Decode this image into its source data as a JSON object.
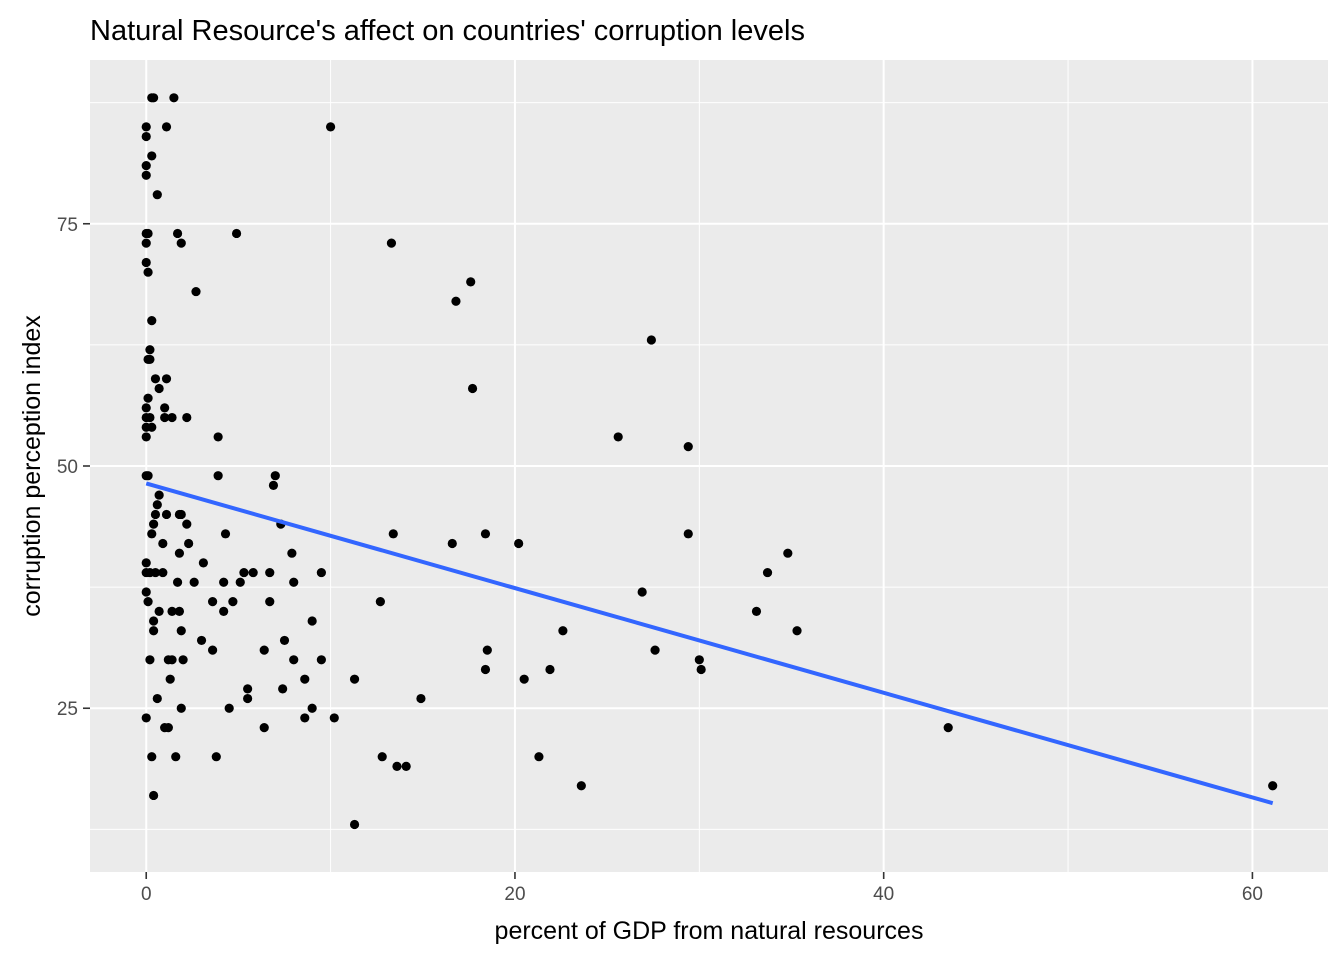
{
  "chart_data": {
    "type": "scatter",
    "title": "Natural Resource's affect on countries' corruption levels",
    "xlabel": "percent of GDP from natural resources",
    "ylabel": "corruption perception index",
    "xlim": [
      -3.05,
      64.1
    ],
    "ylim": [
      8.1,
      91.9
    ],
    "x_ticks": [
      0,
      20,
      40,
      60
    ],
    "x_tick_labels": [
      "0",
      "20",
      "40",
      "60"
    ],
    "y_ticks": [
      25,
      50,
      75
    ],
    "y_tick_labels": [
      "25",
      "50",
      "75"
    ],
    "grid": true,
    "legend": "none",
    "colors": {
      "panel_background": "#ebebeb",
      "grid": "#ffffff",
      "points": "#000000",
      "trend_line": "#3366ff"
    },
    "trend_line": {
      "x": [
        0,
        61.1
      ],
      "y": [
        48.2,
        15.2
      ]
    },
    "points": [
      [
        0.3,
        88
      ],
      [
        0.4,
        88
      ],
      [
        1.5,
        88
      ],
      [
        0,
        85
      ],
      [
        1.1,
        85
      ],
      [
        10,
        85
      ],
      [
        0,
        84
      ],
      [
        0.3,
        82
      ],
      [
        0,
        81
      ],
      [
        0,
        80
      ],
      [
        0.6,
        78
      ],
      [
        0,
        74
      ],
      [
        0.1,
        74
      ],
      [
        1.7,
        74
      ],
      [
        4.9,
        74
      ],
      [
        0,
        73
      ],
      [
        1.9,
        73
      ],
      [
        13.3,
        73
      ],
      [
        0,
        71
      ],
      [
        0.1,
        70
      ],
      [
        17.6,
        69
      ],
      [
        2.7,
        68
      ],
      [
        16.8,
        67
      ],
      [
        0.3,
        65
      ],
      [
        27.4,
        63
      ],
      [
        0.2,
        62
      ],
      [
        0.1,
        61
      ],
      [
        0.2,
        61
      ],
      [
        0.5,
        59
      ],
      [
        1.1,
        59
      ],
      [
        0.7,
        58
      ],
      [
        17.7,
        58
      ],
      [
        0.1,
        57
      ],
      [
        0,
        56
      ],
      [
        1,
        56
      ],
      [
        0,
        55
      ],
      [
        0.2,
        55
      ],
      [
        1,
        55
      ],
      [
        1.4,
        55
      ],
      [
        2.2,
        55
      ],
      [
        0,
        54
      ],
      [
        0.3,
        54
      ],
      [
        0,
        53
      ],
      [
        3.9,
        53
      ],
      [
        25.6,
        53
      ],
      [
        29.4,
        52
      ],
      [
        0,
        49
      ],
      [
        0.1,
        49
      ],
      [
        3.9,
        49
      ],
      [
        7,
        49
      ],
      [
        6.9,
        48
      ],
      [
        0.7,
        47
      ],
      [
        0.6,
        46
      ],
      [
        0.5,
        45
      ],
      [
        1.1,
        45
      ],
      [
        1.8,
        45
      ],
      [
        1.9,
        45
      ],
      [
        0.4,
        44
      ],
      [
        2.2,
        44
      ],
      [
        7.3,
        44
      ],
      [
        0.3,
        43
      ],
      [
        4.3,
        43
      ],
      [
        13.4,
        43
      ],
      [
        18.4,
        43
      ],
      [
        29.4,
        43
      ],
      [
        0.9,
        42
      ],
      [
        2.3,
        42
      ],
      [
        16.6,
        42
      ],
      [
        20.2,
        42
      ],
      [
        1.8,
        41
      ],
      [
        7.9,
        41
      ],
      [
        34.8,
        41
      ],
      [
        0,
        40
      ],
      [
        3.1,
        40
      ],
      [
        0,
        39
      ],
      [
        0.2,
        39
      ],
      [
        0.5,
        39
      ],
      [
        0.9,
        39
      ],
      [
        5.3,
        39
      ],
      [
        5.8,
        39
      ],
      [
        6.7,
        39
      ],
      [
        9.5,
        39
      ],
      [
        33.7,
        39
      ],
      [
        1.7,
        38
      ],
      [
        2.6,
        38
      ],
      [
        4.2,
        38
      ],
      [
        5.1,
        38
      ],
      [
        8,
        38
      ],
      [
        0,
        37
      ],
      [
        26.9,
        37
      ],
      [
        0.1,
        36
      ],
      [
        3.6,
        36
      ],
      [
        4.7,
        36
      ],
      [
        6.7,
        36
      ],
      [
        12.7,
        36
      ],
      [
        0.7,
        35
      ],
      [
        1.4,
        35
      ],
      [
        1.8,
        35
      ],
      [
        4.2,
        35
      ],
      [
        33.1,
        35
      ],
      [
        0.4,
        34
      ],
      [
        9,
        34
      ],
      [
        0.4,
        33
      ],
      [
        1.9,
        33
      ],
      [
        22.6,
        33
      ],
      [
        35.3,
        33
      ],
      [
        3,
        32
      ],
      [
        7.5,
        32
      ],
      [
        3.6,
        31
      ],
      [
        6.4,
        31
      ],
      [
        18.5,
        31
      ],
      [
        27.6,
        31
      ],
      [
        0.2,
        30
      ],
      [
        1.2,
        30
      ],
      [
        1.4,
        30
      ],
      [
        2,
        30
      ],
      [
        8,
        30
      ],
      [
        9.5,
        30
      ],
      [
        30,
        30
      ],
      [
        18.4,
        29
      ],
      [
        21.9,
        29
      ],
      [
        30.1,
        29
      ],
      [
        1.3,
        28
      ],
      [
        8.6,
        28
      ],
      [
        11.3,
        28
      ],
      [
        20.5,
        28
      ],
      [
        5.5,
        27
      ],
      [
        7.4,
        27
      ],
      [
        0.6,
        26
      ],
      [
        5.5,
        26
      ],
      [
        14.9,
        26
      ],
      [
        1.9,
        25
      ],
      [
        4.5,
        25
      ],
      [
        9,
        25
      ],
      [
        0,
        24
      ],
      [
        8.6,
        24
      ],
      [
        10.2,
        24
      ],
      [
        1,
        23
      ],
      [
        1.2,
        23
      ],
      [
        6.4,
        23
      ],
      [
        43.5,
        23
      ],
      [
        0.3,
        20
      ],
      [
        1.6,
        20
      ],
      [
        3.8,
        20
      ],
      [
        12.8,
        20
      ],
      [
        21.3,
        20
      ],
      [
        13.6,
        19
      ],
      [
        14.1,
        19
      ],
      [
        23.6,
        17
      ],
      [
        61.1,
        17
      ],
      [
        0.4,
        16
      ],
      [
        11.3,
        13
      ]
    ]
  }
}
